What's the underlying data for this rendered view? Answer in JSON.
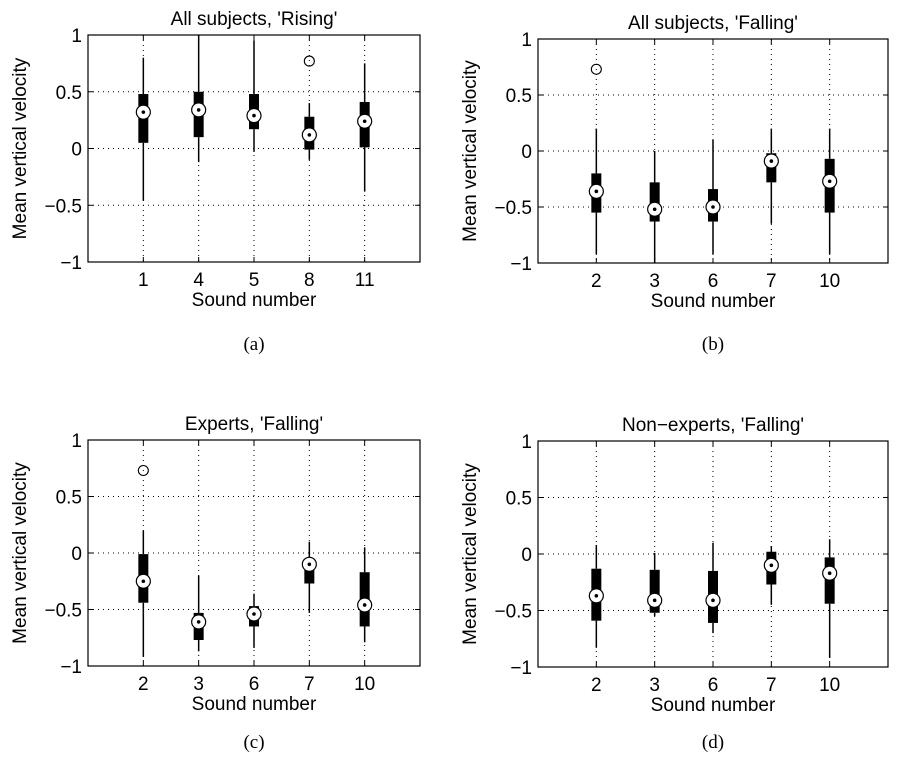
{
  "chart_data": [
    {
      "type": "box",
      "caption": "(a)",
      "title": "All subjects, 'Rising'",
      "xlabel": "Sound number",
      "ylabel": "Mean vertical velocity",
      "ylim": [
        -1,
        1
      ],
      "yticks": [
        -1,
        -0.5,
        0,
        0.5,
        1
      ],
      "ytick_labels": [
        "−1",
        "−0.5",
        "0",
        "0.5",
        "1"
      ],
      "grid": true,
      "categories": [
        "1",
        "4",
        "5",
        "8",
        "11"
      ],
      "boxes": [
        {
          "lower_whisker": -0.46,
          "q1": 0.05,
          "median": 0.32,
          "q3": 0.48,
          "upper_whisker": 0.8,
          "outliers": []
        },
        {
          "lower_whisker": -0.12,
          "q1": 0.1,
          "median": 0.34,
          "q3": 0.5,
          "upper_whisker": 1.0,
          "outliers": []
        },
        {
          "lower_whisker": -0.03,
          "q1": 0.17,
          "median": 0.29,
          "q3": 0.48,
          "upper_whisker": 0.95,
          "outliers": []
        },
        {
          "lower_whisker": -0.1,
          "q1": -0.01,
          "median": 0.12,
          "q3": 0.28,
          "upper_whisker": 0.4,
          "outliers": [
            0.77
          ]
        },
        {
          "lower_whisker": -0.38,
          "q1": 0.01,
          "median": 0.24,
          "q3": 0.41,
          "upper_whisker": 0.75,
          "outliers": []
        }
      ]
    },
    {
      "type": "box",
      "caption": "(b)",
      "title": "All subjects, 'Falling'",
      "xlabel": "Sound number",
      "ylabel": "Mean vertical velocity",
      "ylim": [
        -1,
        1
      ],
      "yticks": [
        -1,
        -0.5,
        0,
        0.5,
        1
      ],
      "ytick_labels": [
        "−1",
        "−0.5",
        "0",
        "0.5",
        "1"
      ],
      "grid": true,
      "categories": [
        "2",
        "3",
        "6",
        "7",
        "10"
      ],
      "boxes": [
        {
          "lower_whisker": -0.92,
          "q1": -0.55,
          "median": -0.36,
          "q3": -0.2,
          "upper_whisker": 0.2,
          "outliers": [
            0.73
          ]
        },
        {
          "lower_whisker": -1.0,
          "q1": -0.63,
          "median": -0.52,
          "q3": -0.28,
          "upper_whisker": 0.0,
          "outliers": []
        },
        {
          "lower_whisker": -0.92,
          "q1": -0.63,
          "median": -0.5,
          "q3": -0.34,
          "upper_whisker": 0.1,
          "outliers": []
        },
        {
          "lower_whisker": -0.65,
          "q1": -0.28,
          "median": -0.09,
          "q3": -0.02,
          "upper_whisker": 0.2,
          "outliers": []
        },
        {
          "lower_whisker": -0.92,
          "q1": -0.55,
          "median": -0.27,
          "q3": -0.07,
          "upper_whisker": 0.2,
          "outliers": []
        }
      ]
    },
    {
      "type": "box",
      "caption": "(c)",
      "title": "Experts, 'Falling'",
      "xlabel": "Sound number",
      "ylabel": "Mean vertical velocity",
      "ylim": [
        -1,
        1
      ],
      "yticks": [
        -1,
        -0.5,
        0,
        0.5,
        1
      ],
      "ytick_labels": [
        "−1",
        "−0.5",
        "0",
        "0.5",
        "1"
      ],
      "grid": true,
      "categories": [
        "2",
        "3",
        "6",
        "7",
        "10"
      ],
      "boxes": [
        {
          "lower_whisker": -0.92,
          "q1": -0.44,
          "median": -0.25,
          "q3": -0.01,
          "upper_whisker": 0.2,
          "outliers": [
            0.73
          ]
        },
        {
          "lower_whisker": -0.87,
          "q1": -0.77,
          "median": -0.61,
          "q3": -0.53,
          "upper_whisker": -0.2,
          "outliers": []
        },
        {
          "lower_whisker": -0.84,
          "q1": -0.65,
          "median": -0.54,
          "q3": -0.47,
          "upper_whisker": -0.36,
          "outliers": []
        },
        {
          "lower_whisker": -0.53,
          "q1": -0.27,
          "median": -0.1,
          "q3": -0.06,
          "upper_whisker": 0.1,
          "outliers": []
        },
        {
          "lower_whisker": -0.79,
          "q1": -0.65,
          "median": -0.46,
          "q3": -0.17,
          "upper_whisker": 0.05,
          "outliers": []
        }
      ]
    },
    {
      "type": "box",
      "caption": "(d)",
      "title": "Non−experts, 'Falling'",
      "xlabel": "Sound number",
      "ylabel": "Mean vertical velocity",
      "ylim": [
        -1,
        1
      ],
      "yticks": [
        -1,
        -0.5,
        0,
        0.5,
        1
      ],
      "ytick_labels": [
        "−1",
        "−0.5",
        "0",
        "0.5",
        "1"
      ],
      "grid": true,
      "categories": [
        "2",
        "3",
        "6",
        "7",
        "10"
      ],
      "boxes": [
        {
          "lower_whisker": -0.83,
          "q1": -0.59,
          "median": -0.37,
          "q3": -0.13,
          "upper_whisker": 0.08,
          "outliers": []
        },
        {
          "lower_whisker": -0.55,
          "q1": -0.52,
          "median": -0.41,
          "q3": -0.14,
          "upper_whisker": 0.01,
          "outliers": []
        },
        {
          "lower_whisker": -0.7,
          "q1": -0.61,
          "median": -0.41,
          "q3": -0.15,
          "upper_whisker": 0.1,
          "outliers": []
        },
        {
          "lower_whisker": -0.45,
          "q1": -0.27,
          "median": -0.1,
          "q3": 0.02,
          "upper_whisker": 0.07,
          "outliers": []
        },
        {
          "lower_whisker": -0.92,
          "q1": -0.44,
          "median": -0.17,
          "q3": -0.03,
          "upper_whisker": 0.13,
          "outliers": []
        }
      ]
    }
  ]
}
